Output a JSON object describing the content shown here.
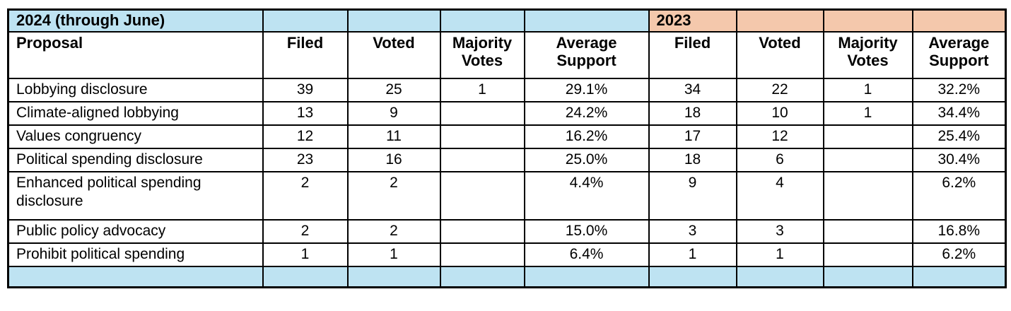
{
  "colors": {
    "band_blue": "#BEE3F2",
    "band_peach": "#F4C8AC",
    "grid_border": "#000000",
    "cell_background": "#FFFFFF"
  },
  "chart_data": {
    "type": "table",
    "group_headers": [
      {
        "label": "2024 (through June)",
        "columns_spanned": 5,
        "bg_color": "#BEE3F2"
      },
      {
        "label": "2023",
        "columns_spanned": 4,
        "bg_color": "#F4C8AC"
      }
    ],
    "columns": [
      "Proposal",
      "Filed",
      "Voted",
      "Majority Votes",
      "Average Support",
      "Filed",
      "Voted",
      "Majority Votes",
      "Average Support"
    ],
    "rows": [
      {
        "proposal": "Lobbying disclosure",
        "cells": [
          "39",
          "25",
          "1",
          "29.1%",
          "34",
          "22",
          "1",
          "32.2%"
        ]
      },
      {
        "proposal": "Climate-aligned lobbying",
        "cells": [
          "13",
          "9",
          "",
          "24.2%",
          "18",
          "10",
          "1",
          "34.4%"
        ]
      },
      {
        "proposal": "Values congruency",
        "cells": [
          "12",
          "11",
          "",
          "16.2%",
          "17",
          "12",
          "",
          "25.4%"
        ]
      },
      {
        "proposal": "Political spending disclosure",
        "cells": [
          "23",
          "16",
          "",
          "25.0%",
          "18",
          "6",
          "",
          "30.4%"
        ]
      },
      {
        "proposal": "Enhanced political spending disclosure",
        "cells": [
          "2",
          "2",
          "",
          "4.4%",
          "9",
          "4",
          "",
          "6.2%"
        ]
      },
      {
        "proposal": "Public policy advocacy",
        "cells": [
          "2",
          "2",
          "",
          "15.0%",
          "3",
          "3",
          "",
          "16.8%"
        ]
      },
      {
        "proposal": "Prohibit political spending",
        "cells": [
          "1",
          "1",
          "",
          "6.4%",
          "1",
          "1",
          "",
          "6.2%"
        ]
      }
    ],
    "footer_row": {
      "bg_color": "#BEE3F2",
      "cells": [
        "",
        "",
        "",
        "",
        "",
        "",
        "",
        "",
        ""
      ]
    }
  }
}
